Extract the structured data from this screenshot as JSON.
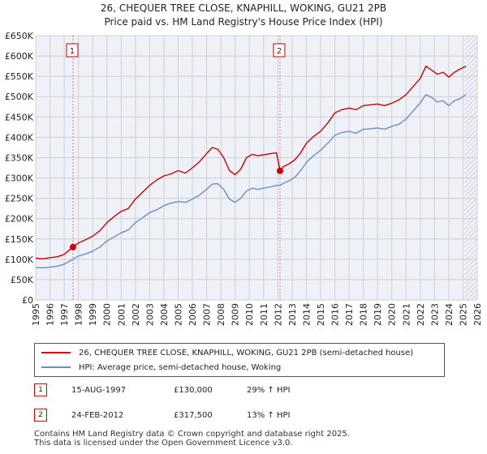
{
  "title_line1": "26, CHEQUER TREE CLOSE, KNAPHILL, WOKING, GU21 2PB",
  "title_line2": "Price paid vs. HM Land Registry's House Price Index (HPI)",
  "legend": {
    "property_label": "26, CHEQUER TREE CLOSE, KNAPHILL, WOKING, GU21 2PB (semi-detached house)",
    "hpi_label": "HPI: Average price, semi-detached house, Woking"
  },
  "sales": [
    {
      "num": "1",
      "date": "15-AUG-1997",
      "price": "£130,000",
      "hpi_change": "29% ↑ HPI"
    },
    {
      "num": "2",
      "date": "24-FEB-2012",
      "price": "£317,500",
      "hpi_change": "13% ↑ HPI"
    }
  ],
  "footer_line1": "Contains HM Land Registry data © Crown copyright and database right 2025.",
  "footer_line2": "This data is licensed under the Open Government Licence v3.0.",
  "colors": {
    "property": "#cc0000",
    "hpi": "#6a8fc8",
    "grid": "#d0d0d0",
    "plot_bg": "#eef1f8",
    "vline": "#e07a7a"
  },
  "chart_data": {
    "type": "line",
    "title": "Price paid vs. HM Land Registry's House Price Index (HPI)",
    "xlabel": "",
    "ylabel": "",
    "xlim": [
      1995,
      2026
    ],
    "ylim": [
      0,
      650000
    ],
    "yticks": [
      0,
      50000,
      100000,
      150000,
      200000,
      250000,
      300000,
      350000,
      400000,
      450000,
      500000,
      550000,
      600000,
      650000
    ],
    "ytick_labels": [
      "£0",
      "£50K",
      "£100K",
      "£150K",
      "£200K",
      "£250K",
      "£300K",
      "£350K",
      "£400K",
      "£450K",
      "£500K",
      "£550K",
      "£600K",
      "£650K"
    ],
    "xticks": [
      1995,
      1996,
      1997,
      1998,
      1999,
      2000,
      2001,
      2002,
      2003,
      2004,
      2005,
      2006,
      2007,
      2008,
      2009,
      2010,
      2011,
      2012,
      2013,
      2014,
      2015,
      2016,
      2017,
      2018,
      2019,
      2020,
      2021,
      2022,
      2023,
      2024,
      2025,
      2026
    ],
    "grid": true,
    "forecast_start": 2025.1,
    "series": [
      {
        "name": "26, CHEQUER TREE CLOSE, KNAPHILL, WOKING, GU21 2PB (semi-detached house)",
        "x": [
          1995.0,
          1995.5,
          1996.0,
          1996.5,
          1997.0,
          1997.6,
          1998.0,
          1998.5,
          1999.0,
          1999.5,
          2000.0,
          2000.5,
          2001.0,
          2001.5,
          2002.0,
          2002.5,
          2003.0,
          2003.5,
          2004.0,
          2004.5,
          2005.0,
          2005.5,
          2006.0,
          2006.5,
          2007.0,
          2007.4,
          2007.8,
          2008.2,
          2008.6,
          2009.0,
          2009.4,
          2009.8,
          2010.2,
          2010.6,
          2011.0,
          2011.5,
          2011.9,
          2012.15,
          2012.4,
          2012.8,
          2013.2,
          2013.6,
          2014.0,
          2014.5,
          2015.0,
          2015.5,
          2016.0,
          2016.5,
          2017.0,
          2017.5,
          2018.0,
          2018.5,
          2019.0,
          2019.5,
          2020.0,
          2020.5,
          2021.0,
          2021.5,
          2022.0,
          2022.4,
          2022.8,
          2023.2,
          2023.6,
          2024.0,
          2024.4,
          2024.8,
          2025.2
        ],
        "values": [
          103000,
          101000,
          104000,
          106000,
          112000,
          130000,
          140000,
          148000,
          157000,
          170000,
          190000,
          205000,
          218000,
          225000,
          248000,
          265000,
          282000,
          295000,
          305000,
          310000,
          318000,
          312000,
          325000,
          340000,
          360000,
          375000,
          370000,
          350000,
          318000,
          308000,
          322000,
          350000,
          358000,
          355000,
          357000,
          360000,
          362000,
          317500,
          328000,
          335000,
          345000,
          362000,
          385000,
          402000,
          415000,
          435000,
          460000,
          468000,
          472000,
          468000,
          478000,
          480000,
          482000,
          478000,
          484000,
          492000,
          505000,
          525000,
          545000,
          575000,
          565000,
          555000,
          560000,
          548000,
          560000,
          568000,
          575000
        ]
      },
      {
        "name": "HPI: Average price, semi-detached house, Woking",
        "x": [
          1995.0,
          1995.5,
          1996.0,
          1996.5,
          1997.0,
          1997.6,
          1998.0,
          1998.5,
          1999.0,
          1999.5,
          2000.0,
          2000.5,
          2001.0,
          2001.5,
          2002.0,
          2002.5,
          2003.0,
          2003.5,
          2004.0,
          2004.5,
          2005.0,
          2005.5,
          2006.0,
          2006.5,
          2007.0,
          2007.4,
          2007.8,
          2008.2,
          2008.6,
          2009.0,
          2009.4,
          2009.8,
          2010.2,
          2010.6,
          2011.0,
          2011.5,
          2011.9,
          2012.15,
          2012.4,
          2012.8,
          2013.2,
          2013.6,
          2014.0,
          2014.5,
          2015.0,
          2015.5,
          2016.0,
          2016.5,
          2017.0,
          2017.5,
          2018.0,
          2018.5,
          2019.0,
          2019.5,
          2020.0,
          2020.5,
          2021.0,
          2021.5,
          2022.0,
          2022.4,
          2022.8,
          2023.2,
          2023.6,
          2024.0,
          2024.4,
          2024.8,
          2025.2
        ],
        "values": [
          80000,
          79000,
          81000,
          83000,
          88000,
          100000,
          108000,
          113000,
          120000,
          130000,
          145000,
          155000,
          165000,
          172000,
          190000,
          202000,
          215000,
          222000,
          232000,
          238000,
          242000,
          240000,
          248000,
          258000,
          272000,
          285000,
          286000,
          272000,
          248000,
          240000,
          250000,
          268000,
          275000,
          272000,
          275000,
          278000,
          282000,
          282000,
          287000,
          293000,
          302000,
          318000,
          338000,
          355000,
          368000,
          385000,
          405000,
          412000,
          415000,
          410000,
          420000,
          421000,
          423000,
          420000,
          427000,
          432000,
          445000,
          465000,
          485000,
          505000,
          498000,
          487000,
          490000,
          478000,
          490000,
          495000,
          505000
        ]
      }
    ],
    "annotations": [
      {
        "label": "1",
        "x": 1997.62,
        "value": 130000
      },
      {
        "label": "2",
        "x": 2012.15,
        "value": 317500
      }
    ]
  }
}
